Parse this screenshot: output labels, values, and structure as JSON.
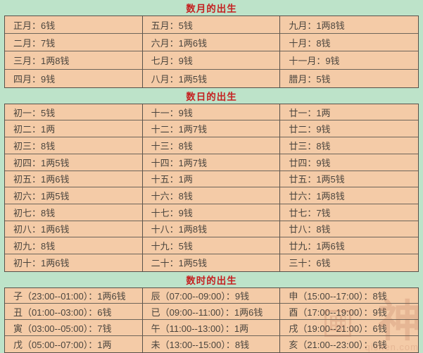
{
  "colors": {
    "page_background": "#bde3c9",
    "cell_background": "#f4cba7",
    "border": "#57514a",
    "header_text": "#c52020",
    "cell_text": "#4a443d"
  },
  "sections": [
    {
      "id": "month",
      "title": "数月的出生",
      "rows": [
        [
          "正月：6钱",
          "五月：5钱",
          "九月：1两8钱"
        ],
        [
          "二月：7钱",
          "六月：1两6钱",
          "十月：8钱"
        ],
        [
          "三月：1两8钱",
          "七月：9钱",
          "十一月：9钱"
        ],
        [
          "四月：9钱",
          "八月：1两5钱",
          "腊月：5钱"
        ]
      ]
    },
    {
      "id": "day",
      "title": "数日的出生",
      "rows": [
        [
          "初一：5钱",
          "十一：9钱",
          "廿一：1两"
        ],
        [
          "初二：1两",
          "十二：1两7钱",
          "廿二：9钱"
        ],
        [
          "初三：8钱",
          "十三：8钱",
          "廿三：8钱"
        ],
        [
          "初四：1两5钱",
          "十四：1两7钱",
          "廿四：9钱"
        ],
        [
          "初五：1两6钱",
          "十五：1两",
          "廿五：1两5钱"
        ],
        [
          "初六：1两5钱",
          "十六：8钱",
          "廿六：1两8钱"
        ],
        [
          "初七：8钱",
          "十七：9钱",
          "廿七：7钱"
        ],
        [
          "初八：1两6钱",
          "十八：1两8钱",
          "廿八：8钱"
        ],
        [
          "初九：8钱",
          "十九：5钱",
          "廿九：1两6钱"
        ],
        [
          "初十：1两6钱",
          "二十：1两5钱",
          "三十：6钱"
        ]
      ]
    },
    {
      "id": "hour",
      "title": "数时的出生",
      "rows": [
        [
          "子（23:00--01:00）：1两6钱",
          "辰（07:00--09:00）：9钱",
          "申（15:00--17:00）：8钱"
        ],
        [
          "丑（01:00--03:00）：6钱",
          "已（09:00--11:00）：1两6钱",
          "酉（17:00--19:00）：9钱"
        ],
        [
          "寅（03:00--05:00）：7钱",
          "午（11:00--13:00）：1两",
          "戌（19:00--21:00）：6钱"
        ],
        [
          "戊（05:00--07:00）：1两",
          "未（13:00--15:00）：8钱",
          "亥（21:00--23:00）：6钱"
        ]
      ]
    }
  ],
  "watermark": {
    "char": "神",
    "url": "qishen.com"
  }
}
